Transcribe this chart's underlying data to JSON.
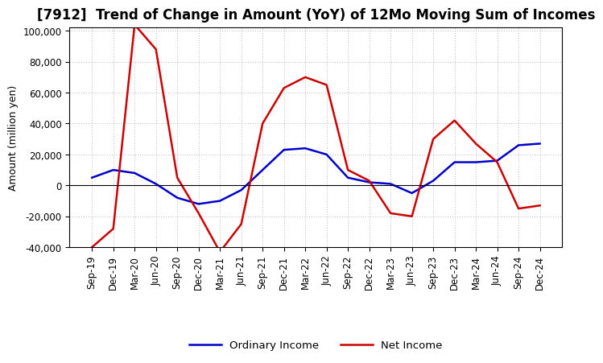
{
  "title": "[7912]  Trend of Change in Amount (YoY) of 12Mo Moving Sum of Incomes",
  "ylabel": "Amount (million yen)",
  "x_labels": [
    "Sep-19",
    "Dec-19",
    "Mar-20",
    "Jun-20",
    "Sep-20",
    "Dec-20",
    "Mar-21",
    "Jun-21",
    "Sep-21",
    "Dec-21",
    "Mar-22",
    "Jun-22",
    "Sep-22",
    "Dec-22",
    "Mar-23",
    "Jun-23",
    "Sep-23",
    "Dec-23",
    "Mar-24",
    "Jun-24",
    "Sep-24",
    "Dec-24"
  ],
  "ordinary_income": [
    5000,
    10000,
    8000,
    1000,
    -8000,
    -12000,
    -10000,
    -3000,
    10000,
    23000,
    24000,
    20000,
    5000,
    2000,
    1000,
    -5000,
    3000,
    15000,
    15000,
    16000,
    26000,
    27000
  ],
  "net_income": [
    -40000,
    -28000,
    104000,
    88000,
    5000,
    -18000,
    -43000,
    -25000,
    40000,
    63000,
    70000,
    65000,
    10000,
    3000,
    -18000,
    -20000,
    30000,
    42000,
    27000,
    15000,
    -15000,
    -13000
  ],
  "ordinary_color": "#0000cc",
  "net_color": "#cc0000",
  "background_color": "#ffffff",
  "grid_color": "#bbbbbb",
  "ylim_min": -40000,
  "ylim_max": 100000,
  "yticks": [
    -40000,
    -20000,
    0,
    20000,
    40000,
    60000,
    80000,
    100000
  ],
  "legend_labels": [
    "Ordinary Income",
    "Net Income"
  ],
  "title_fontsize": 12,
  "axis_fontsize": 9,
  "tick_fontsize": 8.5
}
